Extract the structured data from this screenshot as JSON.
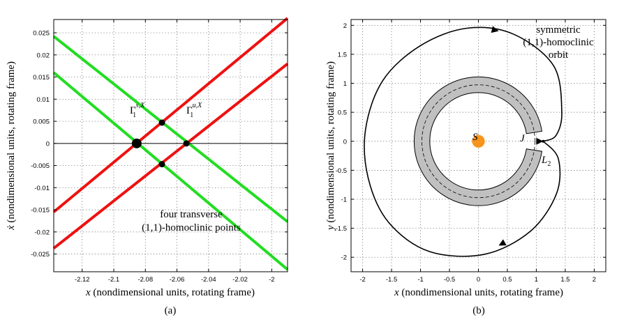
{
  "chart_data": [
    {
      "type": "line",
      "panel_label": "(a)",
      "xlabel_prefix": "x",
      "xlabel_rest": "(nondimensional units, rotating frame)",
      "ylabel_prefix": "ẋ",
      "ylabel_rest": "(nondimensional units, rotating frame)",
      "xlim": [
        -2.138,
        -1.99
      ],
      "ylim": [
        -0.029,
        0.028
      ],
      "xticks": [
        -2.12,
        -2.1,
        -2.08,
        -2.06,
        -2.04,
        -2.02,
        -2
      ],
      "xtick_labels": [
        "-2.12",
        "-2.1",
        "-2.08",
        "-2.06",
        "-2.04",
        "-2.02",
        "-2"
      ],
      "yticks": [
        -0.025,
        -0.02,
        -0.015,
        -0.01,
        -0.005,
        0,
        0.005,
        0.01,
        0.015,
        0.02,
        0.025
      ],
      "ytick_labels": [
        "-0.025",
        "-0.02",
        "-0.015",
        "-0.01",
        "-0.005",
        "0",
        "0.005",
        "0.01",
        "0.015",
        "0.02",
        "0.025"
      ],
      "grid": true,
      "series": [
        {
          "color": "#22dd22",
          "x": [
            -2.138,
            -1.99
          ],
          "y": [
            0.0242,
            -0.0177
          ]
        },
        {
          "color": "#22dd22",
          "x": [
            -2.138,
            -1.99
          ],
          "y": [
            0.016,
            -0.0285
          ]
        },
        {
          "color": "#ee1111",
          "x": [
            -2.138,
            -1.99
          ],
          "y": [
            -0.0155,
            0.0283
          ]
        },
        {
          "color": "#ee1111",
          "x": [
            -2.138,
            -1.99
          ],
          "y": [
            -0.0237,
            0.018
          ]
        }
      ],
      "points": [
        {
          "x": -2.0855,
          "y": 0.0,
          "size": "large"
        },
        {
          "x": -2.054,
          "y": 0.0,
          "size": "small"
        },
        {
          "x": -2.0695,
          "y": 0.0047,
          "size": "small"
        },
        {
          "x": -2.0695,
          "y": -0.0047,
          "size": "small"
        }
      ],
      "annotations": {
        "gamma_s_base": "Γ",
        "gamma_s_sub": "1",
        "gamma_s_sup": "s,X",
        "gamma_u_base": "Γ",
        "gamma_u_sub": "1",
        "gamma_u_sup": "u,X",
        "text_line1": "four transverse",
        "text_line2": "(1,1)-homoclinic points"
      }
    },
    {
      "type": "line",
      "panel_label": "(b)",
      "xlabel_prefix": "x",
      "xlabel_rest": "(nondimensional units, rotating frame)",
      "ylabel_prefix": "y",
      "ylabel_rest": "(nondimensional units, rotating frame)",
      "xlim": [
        -2.2,
        2.2
      ],
      "ylim": [
        -2.25,
        2.1
      ],
      "xticks": [
        -2,
        -1.5,
        -1,
        -0.5,
        0,
        0.5,
        1,
        1.5,
        2
      ],
      "xtick_labels": [
        "-2",
        "-1.5",
        "-1",
        "-0.5",
        "0",
        "0.5",
        "1",
        "1.5",
        "2"
      ],
      "yticks": [
        -2,
        -1.5,
        -1,
        -0.5,
        0,
        0.5,
        1,
        1.5,
        2
      ],
      "ytick_labels": [
        "-2",
        "-1.5",
        "-1",
        "-0.5",
        "0",
        "0.5",
        "1",
        "1.5",
        "2"
      ],
      "grid": true,
      "ring": {
        "inner_radius": 0.84,
        "outer_radius": 1.11,
        "gap_half_angle_deg": 9,
        "color": "#c0c0c0"
      },
      "sun": {
        "x": 0,
        "y": 0,
        "radius": 0.11,
        "color": "#f7941d"
      },
      "L2": {
        "x": 1.12,
        "y": 0
      },
      "orbit": {
        "upper": [
          [
            1.12,
            0
          ],
          [
            1.34,
            0.1
          ],
          [
            1.44,
            0.5
          ],
          [
            1.3,
            1.3
          ],
          [
            0.6,
            1.85
          ],
          [
            -0.2,
            1.95
          ],
          [
            -1,
            1.65
          ],
          [
            -1.65,
            1.05
          ],
          [
            -1.95,
            0.2
          ],
          [
            -1.9,
            -0.65
          ],
          [
            -1.55,
            -1.4
          ],
          [
            -0.85,
            -1.9
          ],
          [
            0.1,
            -1.95
          ],
          [
            0.9,
            -1.55
          ],
          [
            1.35,
            -0.9
          ],
          [
            1.38,
            -0.3
          ],
          [
            1.12,
            0
          ]
        ]
      },
      "annotations": {
        "S": "S",
        "J": "J",
        "L_base": "L",
        "L_sub": "2",
        "orbit_line1": "symmetric",
        "orbit_line2": "(1,1)-homoclinic",
        "orbit_line3": "orbit"
      }
    }
  ]
}
